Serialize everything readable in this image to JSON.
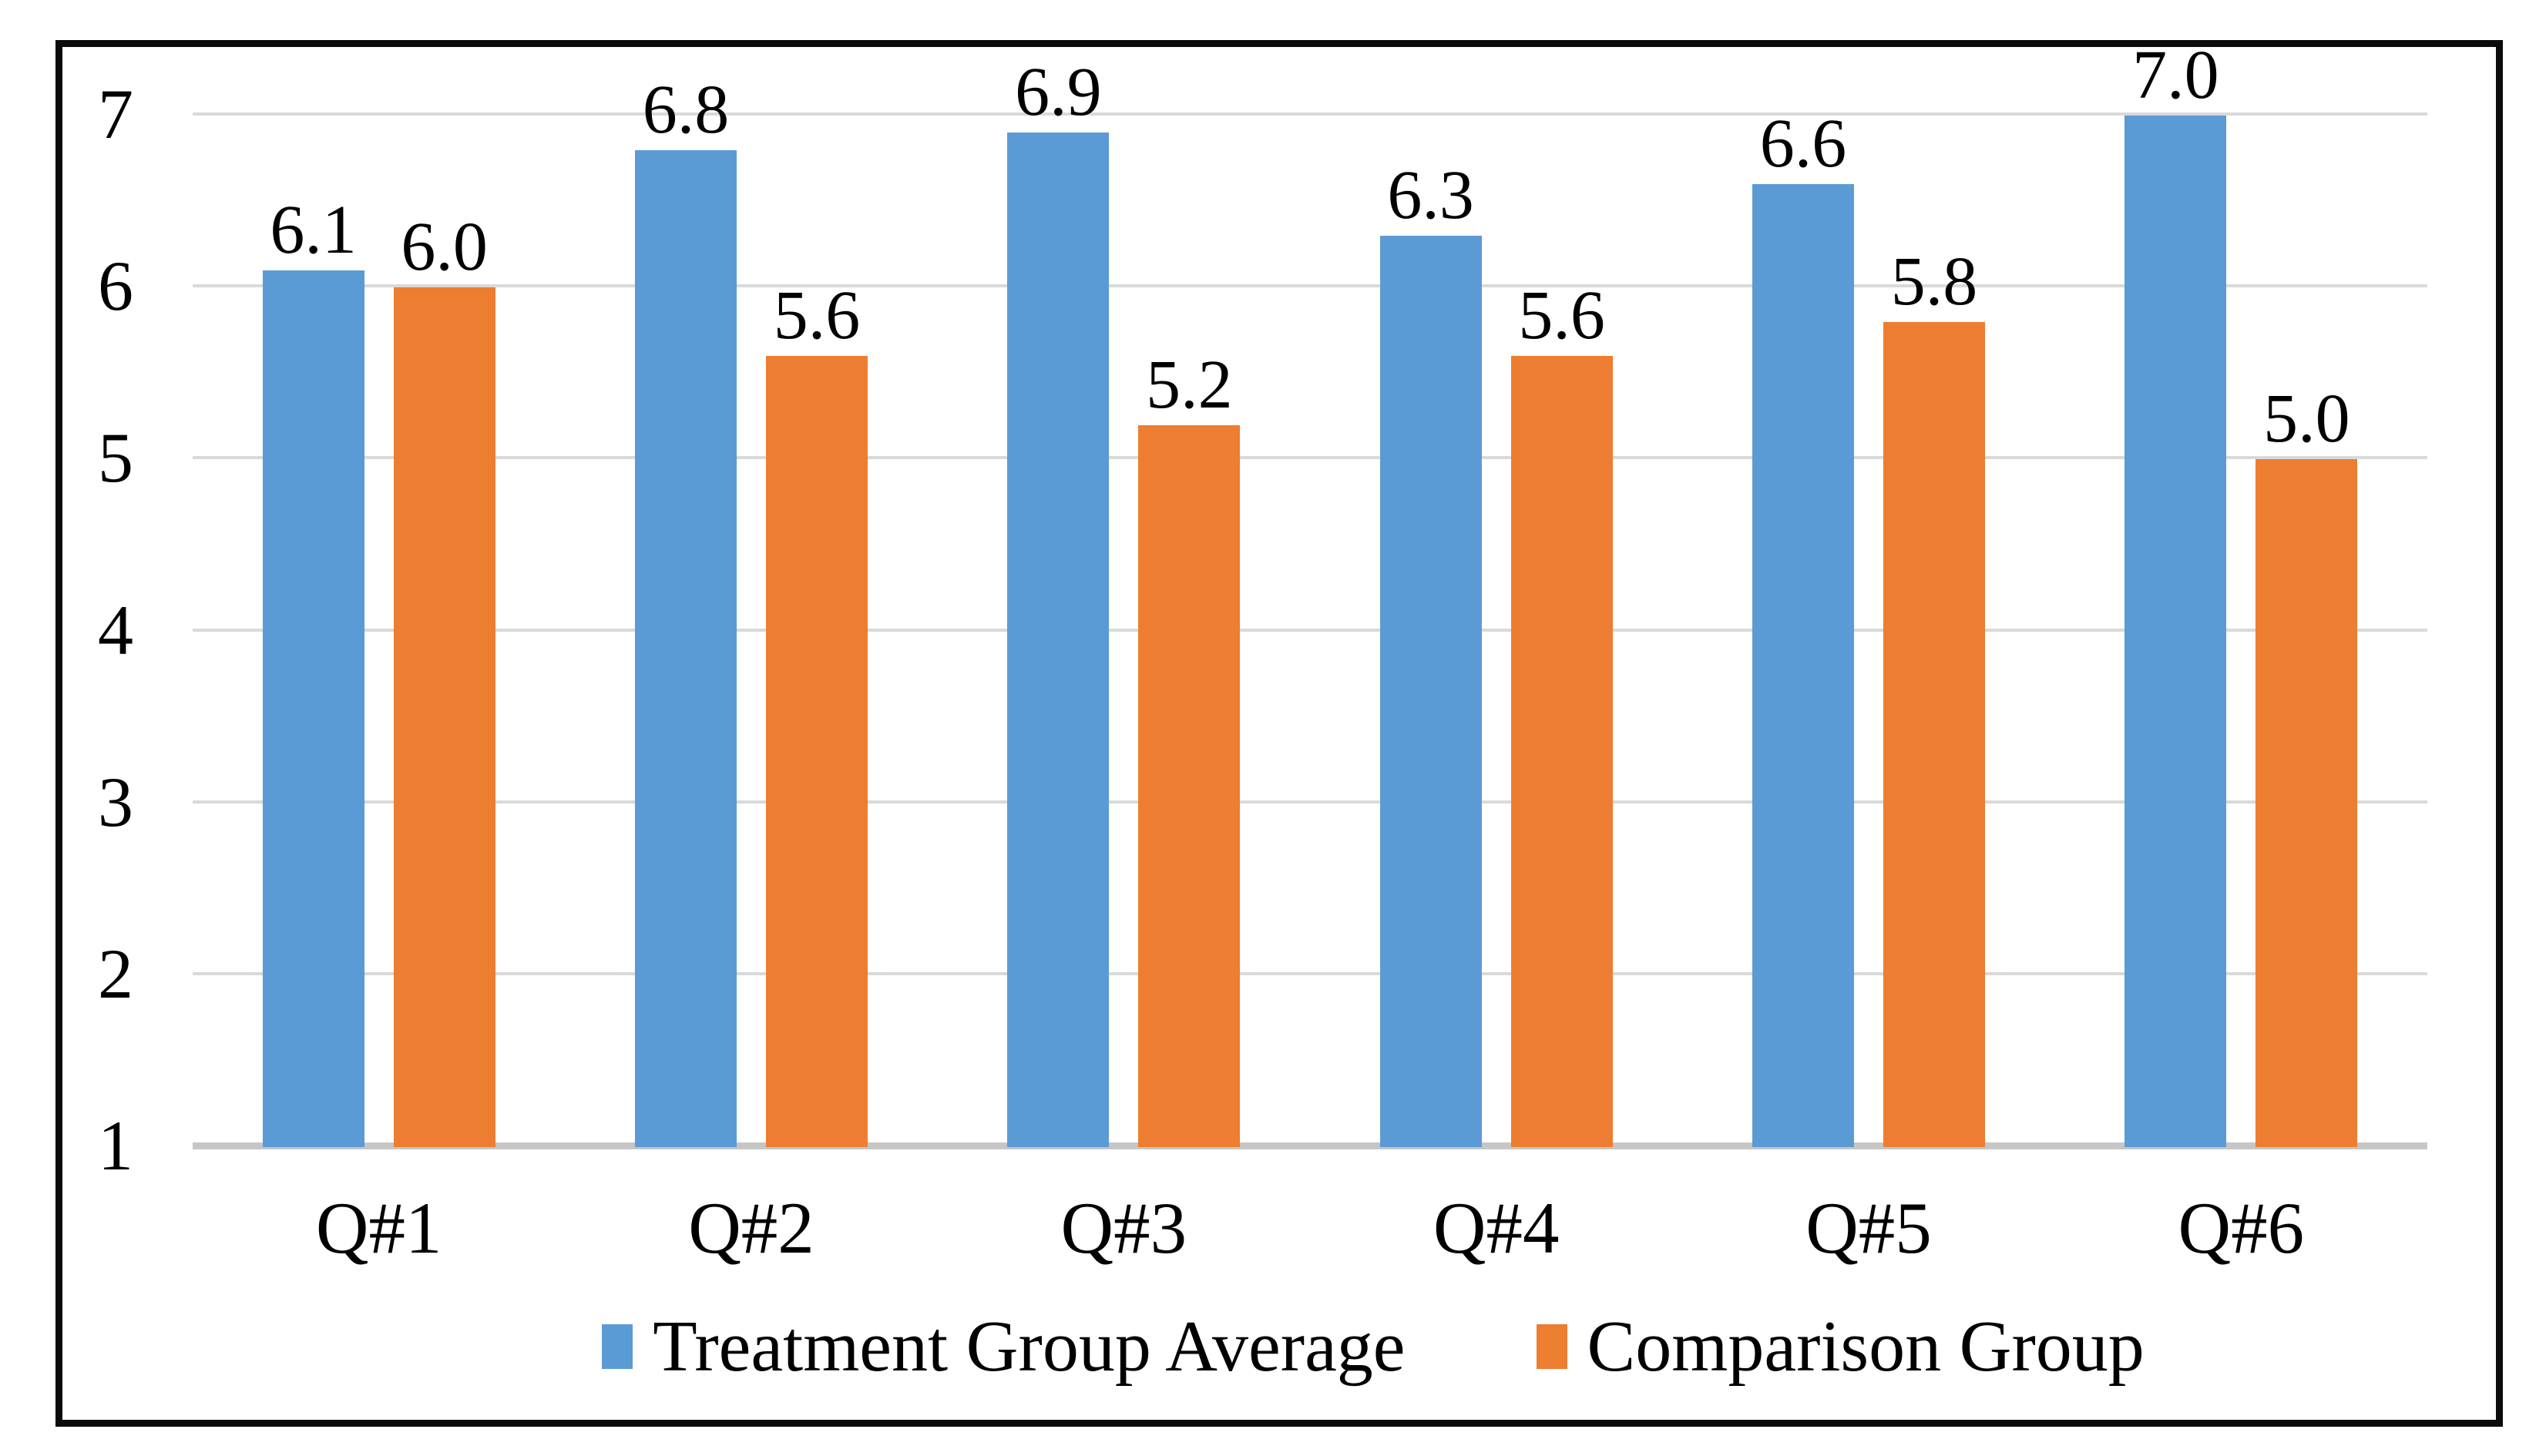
{
  "figure": {
    "background_color": "#FFFFFF",
    "frame_border_color": "#0B0B0B",
    "gridline_color": "#D9D9D9",
    "axis_line_color": "#C6C6C6",
    "text_color": "#000000"
  },
  "chart_data": {
    "type": "bar",
    "title": "",
    "xlabel": "",
    "ylabel": "",
    "categories": [
      "Q#1",
      "Q#2",
      "Q#3",
      "Q#4",
      "Q#5",
      "Q#6"
    ],
    "series": [
      {
        "name": "Treatment Group Average",
        "color": "#5B9BD5",
        "values": [
          6.1,
          6.8,
          6.9,
          6.3,
          6.6,
          7.0
        ]
      },
      {
        "name": "Comparison Group",
        "color": "#ED7D31",
        "values": [
          6.0,
          5.6,
          5.2,
          5.6,
          5.8,
          5.0
        ]
      }
    ],
    "data_labels": [
      [
        "6.1",
        "6.8",
        "6.9",
        "6.3",
        "6.6",
        "7.0"
      ],
      [
        "6.0",
        "5.6",
        "5.2",
        "5.6",
        "5.8",
        "5.0"
      ]
    ],
    "y_axis": {
      "min": 1,
      "max": 7,
      "step": 1,
      "ticks": [
        "7",
        "6",
        "5",
        "4",
        "3",
        "2",
        "1"
      ]
    },
    "grid": "horizontal",
    "legend_position": "bottom-center"
  }
}
